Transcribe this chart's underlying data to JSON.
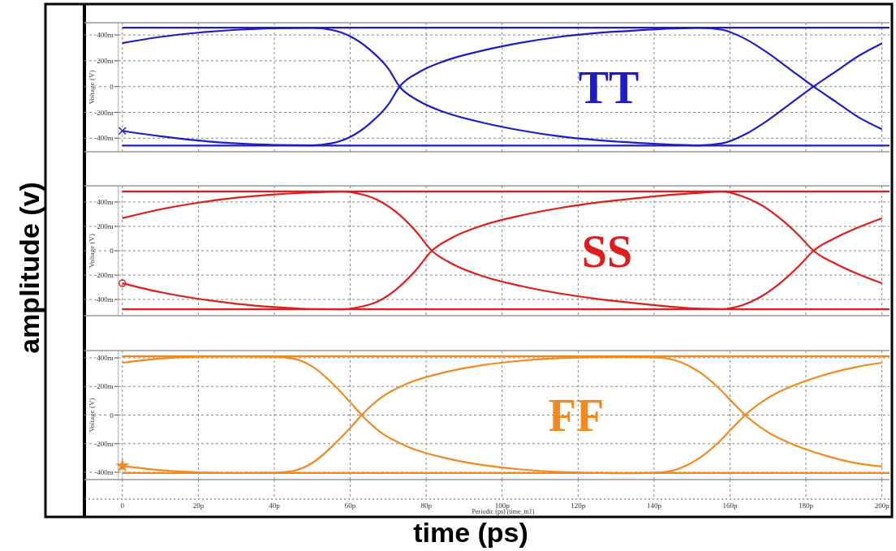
{
  "chart_data": [
    {
      "type": "line",
      "title": "TT",
      "ylabel": "Voltage (V)",
      "annotations": [
        "amplitude (v)"
      ],
      "xlim": [
        -10,
        202
      ],
      "ylim": [
        -505,
        495
      ],
      "grid": true,
      "tick_labels": "y",
      "xticks": [
        {
          "value": 0,
          "label": null
        },
        {
          "value": 20,
          "label": null
        },
        {
          "value": 40,
          "label": null
        },
        {
          "value": 60,
          "label": null
        },
        {
          "value": 80,
          "label": null
        },
        {
          "value": 100,
          "label": null
        },
        {
          "value": 120,
          "label": null
        },
        {
          "value": 140,
          "label": null
        },
        {
          "value": 160,
          "label": null
        },
        {
          "value": 180,
          "label": null
        },
        {
          "value": 200,
          "label": null
        }
      ],
      "yticks": [
        {
          "value": -400,
          "label": "-400m"
        },
        {
          "value": -200,
          "label": "-200m"
        },
        {
          "value": 0,
          "label": "0"
        },
        {
          "value": 200,
          "label": "200m"
        },
        {
          "value": 400,
          "label": "400m"
        }
      ],
      "series": [
        {
          "color": "#1c1cc8",
          "x": [
            0,
            10,
            20,
            30,
            40,
            50,
            55,
            60,
            65,
            70,
            73,
            78,
            85,
            95,
            105,
            115,
            125,
            135,
            145,
            152,
            158,
            164,
            170,
            176,
            182,
            188,
            194,
            200
          ],
          "values": [
            337,
            385,
            418,
            440,
            452,
            455,
            440,
            390,
            290,
            140,
            0,
            -110,
            -200,
            -280,
            -340,
            -385,
            -415,
            -435,
            -450,
            -455,
            -440,
            -370,
            -260,
            -130,
            0,
            120,
            240,
            335
          ]
        },
        {
          "color": "#1c1cc8",
          "x": [
            0,
            10,
            20,
            30,
            40,
            50,
            55,
            60,
            65,
            70,
            73,
            78,
            85,
            95,
            105,
            115,
            125,
            135,
            145,
            152,
            158,
            164,
            170,
            176,
            182,
            188,
            194,
            200
          ],
          "values": [
            -343,
            -385,
            -418,
            -440,
            -452,
            -455,
            -440,
            -390,
            -290,
            -140,
            0,
            110,
            200,
            280,
            340,
            385,
            415,
            435,
            450,
            455,
            440,
            370,
            260,
            130,
            0,
            -120,
            -240,
            -330
          ]
        },
        {
          "color": "#1c1cc8",
          "x": [
            0,
            202
          ],
          "values": [
            457,
            457
          ]
        },
        {
          "color": "#1c1cc8",
          "x": [
            0,
            202
          ],
          "values": [
            -457,
            -457
          ]
        },
        {
          "type": "scatter",
          "marker": "cross",
          "color": "#1c1cc8",
          "x": [
            0
          ],
          "values": [
            -343
          ]
        }
      ]
    },
    {
      "type": "line",
      "title": "SS",
      "ylabel": "Voltage (V)",
      "xlim": [
        -10,
        202
      ],
      "ylim": [
        -533,
        533
      ],
      "grid": true,
      "tick_labels": "y",
      "xticks": [
        {
          "value": 0,
          "label": null
        },
        {
          "value": 20,
          "label": null
        },
        {
          "value": 40,
          "label": null
        },
        {
          "value": 60,
          "label": null
        },
        {
          "value": 80,
          "label": null
        },
        {
          "value": 100,
          "label": null
        },
        {
          "value": 120,
          "label": null
        },
        {
          "value": 140,
          "label": null
        },
        {
          "value": 160,
          "label": null
        },
        {
          "value": 180,
          "label": null
        },
        {
          "value": 200,
          "label": null
        }
      ],
      "yticks": [
        {
          "value": -400,
          "label": "-400m"
        },
        {
          "value": -200,
          "label": "-200m"
        },
        {
          "value": 0,
          "label": "0"
        },
        {
          "value": 200,
          "label": "200m"
        },
        {
          "value": 400,
          "label": "400m"
        }
      ],
      "series": [
        {
          "color": "#e01c1c",
          "x": [
            0,
            10,
            20,
            30,
            40,
            50,
            58,
            62,
            67,
            72,
            77,
            81.5,
            87,
            95,
            105,
            115,
            125,
            135,
            145,
            152,
            158,
            163,
            168,
            173,
            178,
            182,
            188,
            194,
            200
          ],
          "values": [
            267,
            340,
            395,
            435,
            462,
            478,
            485,
            470,
            420,
            320,
            170,
            0,
            -110,
            -210,
            -290,
            -350,
            -395,
            -430,
            -460,
            -475,
            -478,
            -450,
            -380,
            -270,
            -130,
            0,
            110,
            195,
            267
          ]
        },
        {
          "color": "#e01c1c",
          "x": [
            0,
            10,
            20,
            30,
            40,
            50,
            58,
            62,
            67,
            72,
            77,
            81.5,
            87,
            95,
            105,
            115,
            125,
            135,
            145,
            152,
            158,
            163,
            168,
            173,
            178,
            182,
            188,
            194,
            200
          ],
          "values": [
            -267,
            -340,
            -395,
            -435,
            -462,
            -478,
            -480,
            -465,
            -420,
            -320,
            -170,
            0,
            110,
            210,
            290,
            350,
            395,
            430,
            460,
            475,
            485,
            450,
            380,
            270,
            130,
            0,
            -110,
            -195,
            -267
          ]
        },
        {
          "color": "#e01c1c",
          "x": [
            0,
            202
          ],
          "values": [
            487,
            487
          ]
        },
        {
          "color": "#e01c1c",
          "x": [
            0,
            202
          ],
          "values": [
            -480,
            -480
          ]
        },
        {
          "type": "scatter",
          "marker": "circle",
          "color": "#e01c1c",
          "x": [
            0
          ],
          "values": [
            -267
          ]
        }
      ]
    },
    {
      "type": "line",
      "title": "FF",
      "ylabel": "Voltage (V)",
      "xlabel": "Periodic (ps) (time_m1)",
      "annotations": [
        "time (ps)"
      ],
      "xlim": [
        -10,
        202
      ],
      "ylim": [
        -451,
        451
      ],
      "grid": true,
      "xticks": [
        {
          "value": 0,
          "label": "0"
        },
        {
          "value": 20,
          "label": "20p"
        },
        {
          "value": 40,
          "label": "40p"
        },
        {
          "value": 60,
          "label": "60p"
        },
        {
          "value": 80,
          "label": "80p"
        },
        {
          "value": 100,
          "label": "100p"
        },
        {
          "value": 120,
          "label": "120p"
        },
        {
          "value": 140,
          "label": "140p"
        },
        {
          "value": 160,
          "label": "160p"
        },
        {
          "value": 180,
          "label": "180p"
        },
        {
          "value": 200,
          "label": "200p"
        }
      ],
      "yticks": [
        {
          "value": -400,
          "label": "-400m"
        },
        {
          "value": -200,
          "label": "-200m"
        },
        {
          "value": 0,
          "label": "0"
        },
        {
          "value": 200,
          "label": "200m"
        },
        {
          "value": 400,
          "label": "400m"
        }
      ],
      "series": [
        {
          "color": "#f28a1e",
          "x": [
            0,
            10,
            20,
            30,
            40,
            45,
            50,
            55,
            60,
            63,
            68,
            75,
            85,
            95,
            105,
            115,
            125,
            135,
            142,
            147,
            152,
            157,
            161,
            164,
            170,
            178,
            186,
            194,
            200
          ],
          "values": [
            366,
            395,
            408,
            411,
            408,
            395,
            340,
            230,
            90,
            0,
            -120,
            -220,
            -300,
            -350,
            -380,
            -398,
            -405,
            -406,
            -400,
            -370,
            -300,
            -190,
            -80,
            0,
            120,
            220,
            290,
            340,
            366
          ]
        },
        {
          "color": "#f28a1e",
          "x": [
            0,
            10,
            20,
            30,
            40,
            45,
            50,
            55,
            60,
            63,
            68,
            75,
            85,
            95,
            105,
            115,
            125,
            135,
            142,
            147,
            152,
            157,
            161,
            164,
            170,
            178,
            186,
            194,
            200
          ],
          "values": [
            -355,
            -385,
            -400,
            -405,
            -403,
            -390,
            -335,
            -225,
            -90,
            0,
            120,
            220,
            300,
            350,
            380,
            398,
            405,
            406,
            400,
            370,
            300,
            190,
            80,
            0,
            -120,
            -220,
            -290,
            -340,
            -360
          ]
        },
        {
          "color": "#f28a1e",
          "x": [
            0,
            202
          ],
          "values": [
            411,
            411
          ]
        },
        {
          "color": "#f28a1e",
          "x": [
            0,
            202
          ],
          "values": [
            -405,
            -405
          ]
        },
        {
          "type": "scatter",
          "marker": "star",
          "color": "#f28a1e",
          "x": [
            0
          ],
          "values": [
            -355
          ]
        }
      ]
    }
  ]
}
